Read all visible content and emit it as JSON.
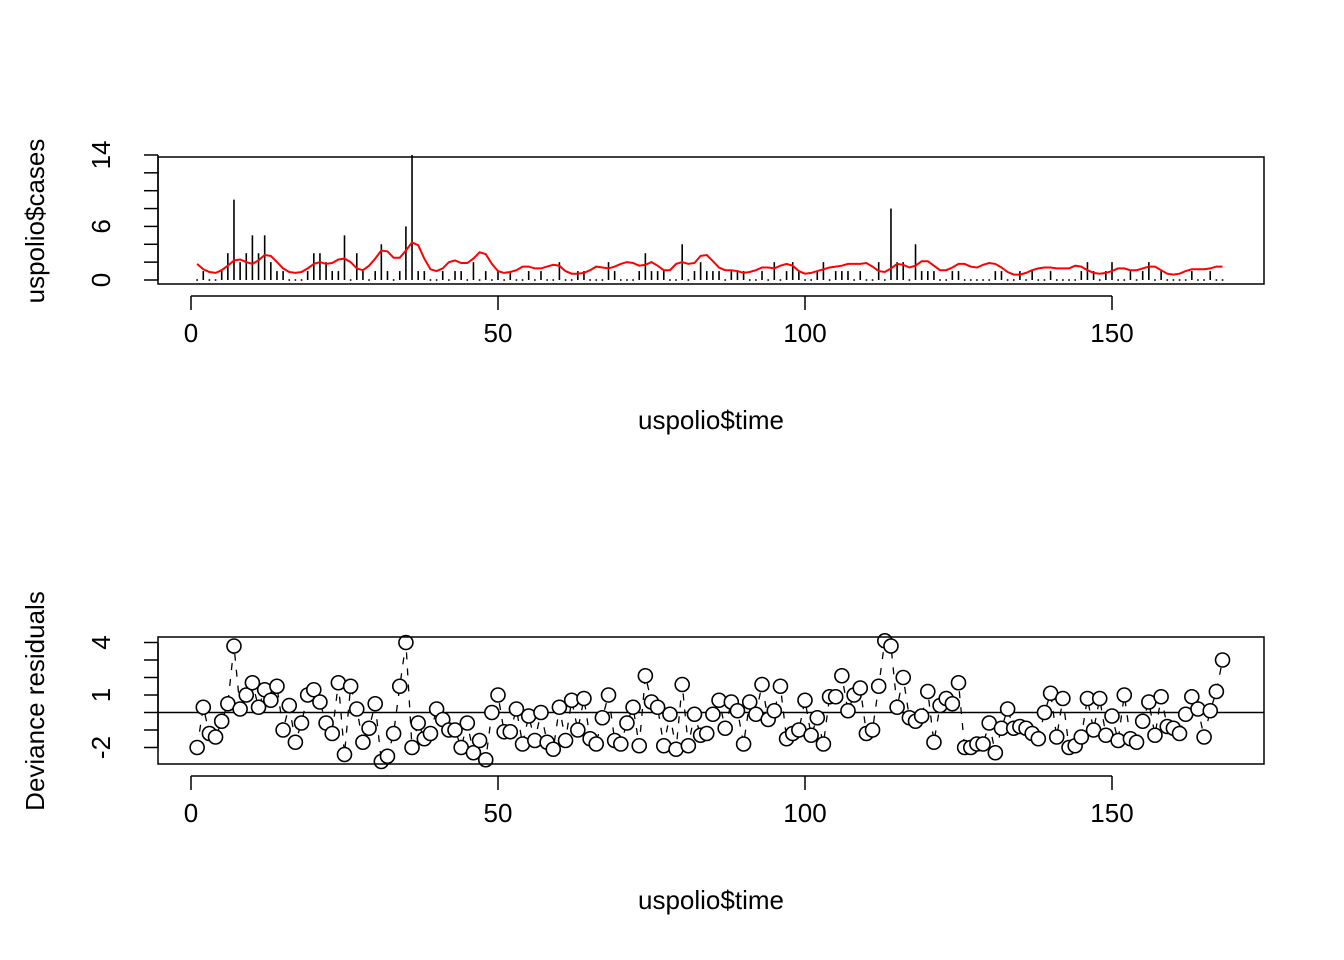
{
  "colors": {
    "axis": "#000000",
    "bars": "#000000",
    "fitted": "#ff0000",
    "points": "#000000",
    "background": "#ffffff"
  },
  "chart_data": [
    {
      "type": "bar",
      "subtype": "histogram-like vertical lines with fitted line overlay",
      "xlabel": "uspolio$time",
      "ylabel": "uspolio$cases",
      "xlim": [
        -5,
        175
      ],
      "ylim": [
        0,
        14
      ],
      "xticks": [
        0,
        50,
        100,
        150
      ],
      "xtick_labels": [
        "0",
        "50",
        "100",
        "150"
      ],
      "yticks": [
        0,
        6,
        14
      ],
      "ytick_labels": [
        "0",
        "6",
        "14"
      ],
      "yminor_ticks": [
        0,
        2,
        4,
        6,
        8,
        10,
        12,
        14
      ],
      "grid": false,
      "series": [
        {
          "kind": "lines-h",
          "x": [
            1,
            2,
            3,
            4,
            5,
            6,
            7,
            8,
            9,
            10,
            11,
            12,
            13,
            14,
            15,
            16,
            17,
            18,
            19,
            20,
            21,
            22,
            23,
            24,
            25,
            26,
            27,
            28,
            29,
            30,
            31,
            32,
            33,
            34,
            35,
            36,
            37,
            38,
            39,
            40,
            41,
            42,
            43,
            44,
            45,
            46,
            47,
            48,
            49,
            50,
            51,
            52,
            53,
            54,
            55,
            56,
            57,
            58,
            59,
            60,
            61,
            62,
            63,
            64,
            65,
            66,
            67,
            68,
            69,
            70,
            71,
            72,
            73,
            74,
            75,
            76,
            77,
            78,
            79,
            80,
            81,
            82,
            83,
            84,
            85,
            86,
            87,
            88,
            89,
            90,
            91,
            92,
            93,
            94,
            95,
            96,
            97,
            98,
            99,
            100,
            101,
            102,
            103,
            104,
            105,
            106,
            107,
            108,
            109,
            110,
            111,
            112,
            113,
            114,
            115,
            116,
            117,
            118,
            119,
            120,
            121,
            122,
            123,
            124,
            125,
            126,
            127,
            128,
            129,
            130,
            131,
            132,
            133,
            134,
            135,
            136,
            137,
            138,
            139,
            140,
            141,
            142,
            143,
            144,
            145,
            146,
            147,
            148,
            149,
            150,
            151,
            152,
            153,
            154,
            155,
            156,
            157,
            158,
            159,
            160,
            161,
            162,
            163,
            164,
            165,
            166,
            167,
            168
          ],
          "values": [
            0,
            1,
            0,
            0,
            1,
            3,
            9,
            2,
            3,
            5,
            3,
            5,
            2,
            1,
            1,
            0,
            0,
            0,
            1,
            3,
            3,
            2,
            1,
            1,
            5,
            0,
            3,
            1,
            0,
            1,
            4,
            1,
            0,
            1,
            6,
            14,
            1,
            1,
            0,
            0,
            1,
            0,
            1,
            1,
            0,
            2,
            0,
            1,
            0,
            1,
            0,
            1,
            0,
            0,
            1,
            0,
            1,
            0,
            0,
            2,
            0,
            0,
            1,
            1,
            0,
            0,
            0,
            2,
            1,
            0,
            0,
            0,
            1,
            3,
            1,
            1,
            1,
            0,
            0,
            4,
            0,
            1,
            2,
            1,
            1,
            1,
            0,
            1,
            1,
            1,
            0,
            0,
            1,
            0,
            2,
            0,
            1,
            2,
            1,
            0,
            0,
            1,
            2,
            0,
            1,
            1,
            1,
            0,
            1,
            0,
            0,
            2,
            0,
            8,
            2,
            2,
            0,
            4,
            1,
            1,
            1,
            0,
            0,
            1,
            1,
            0,
            0,
            0,
            0,
            0,
            1,
            1,
            0,
            0,
            1,
            0,
            1,
            0,
            0,
            1,
            0,
            0,
            0,
            0,
            1,
            2,
            1,
            0,
            1,
            2,
            0,
            0,
            1,
            0,
            1,
            2,
            0,
            1,
            0,
            0,
            0,
            0,
            1,
            0,
            0,
            1,
            0,
            0
          ]
        },
        {
          "kind": "fitted-line",
          "x": [
            1,
            2,
            3,
            4,
            5,
            6,
            7,
            8,
            9,
            10,
            11,
            12,
            13,
            14,
            15,
            16,
            17,
            18,
            19,
            20,
            21,
            22,
            23,
            24,
            25,
            26,
            27,
            28,
            29,
            30,
            31,
            32,
            33,
            34,
            35,
            36,
            37,
            38,
            39,
            40,
            41,
            42,
            43,
            44,
            45,
            46,
            47,
            48,
            49,
            50,
            51,
            52,
            53,
            54,
            55,
            56,
            57,
            58,
            59,
            60,
            61,
            62,
            63,
            64,
            65,
            66,
            67,
            68,
            69,
            70,
            71,
            72,
            73,
            74,
            75,
            76,
            77,
            78,
            79,
            80,
            81,
            82,
            83,
            84,
            85,
            86,
            87,
            88,
            89,
            90,
            91,
            92,
            93,
            94,
            95,
            96,
            97,
            98,
            99,
            100,
            101,
            102,
            103,
            104,
            105,
            106,
            107,
            108,
            109,
            110,
            111,
            112,
            113,
            114,
            115,
            116,
            117,
            118,
            119,
            120,
            121,
            122,
            123,
            124,
            125,
            126,
            127,
            128,
            129,
            130,
            131,
            132,
            133,
            134,
            135,
            136,
            137,
            138,
            139,
            140,
            141,
            142,
            143,
            144,
            145,
            146,
            147,
            148,
            149,
            150,
            151,
            152,
            153,
            154,
            155,
            156,
            157,
            158,
            159,
            160,
            161,
            162,
            163,
            164,
            165,
            166,
            167,
            168
          ],
          "values": [
            1.8,
            1.2,
            0.9,
            0.8,
            1.1,
            1.6,
            2.2,
            2.3,
            2.0,
            1.8,
            2.2,
            2.8,
            2.7,
            2.0,
            1.3,
            0.9,
            0.8,
            0.9,
            1.3,
            1.8,
            2.0,
            1.8,
            1.9,
            2.3,
            2.4,
            2.0,
            1.3,
            1.1,
            1.6,
            2.4,
            3.3,
            3.2,
            2.5,
            2.5,
            3.3,
            4.2,
            3.9,
            2.4,
            1.2,
            1.0,
            1.3,
            2.0,
            2.2,
            1.9,
            1.9,
            2.4,
            3.1,
            2.9,
            1.8,
            1.0,
            0.8,
            0.9,
            1.1,
            1.5,
            1.5,
            1.3,
            1.3,
            1.5,
            1.7,
            1.6,
            1.0,
            0.7,
            0.7,
            0.8,
            1.1,
            1.5,
            1.4,
            1.3,
            1.5,
            1.8,
            2.0,
            1.9,
            1.6,
            1.7,
            2.0,
            1.6,
            1.1,
            1.1,
            1.8,
            2.0,
            1.8,
            1.9,
            2.7,
            2.8,
            2.1,
            1.4,
            1.1,
            1.1,
            1.0,
            0.8,
            0.9,
            1.1,
            1.4,
            1.4,
            1.3,
            1.6,
            1.8,
            1.6,
            1.0,
            0.7,
            0.8,
            1.0,
            1.2,
            1.4,
            1.5,
            1.6,
            1.8,
            1.8,
            1.8,
            1.9,
            1.5,
            1.0,
            0.9,
            1.3,
            1.8,
            1.7,
            1.4,
            1.6,
            2.1,
            2.1,
            1.6,
            1.1,
            1.1,
            1.4,
            1.8,
            1.8,
            1.5,
            1.4,
            1.7,
            1.9,
            1.8,
            1.4,
            0.9,
            0.6,
            0.6,
            0.8,
            1.1,
            1.3,
            1.4,
            1.4,
            1.3,
            1.3,
            1.3,
            1.6,
            1.5,
            1.1,
            0.8,
            0.7,
            0.8,
            1.0,
            1.3,
            1.3,
            1.1,
            1.1,
            1.3,
            1.5,
            1.5,
            1.1,
            0.7,
            0.6,
            0.7,
            1.0,
            1.2,
            1.2,
            1.2,
            1.3,
            1.5,
            1.5
          ]
        }
      ]
    },
    {
      "type": "scatter",
      "subtype": "points with connecting dashed line and zero reference line",
      "xlabel": "uspolio$time",
      "ylabel": "Deviance residuals",
      "xlim": [
        -5,
        175
      ],
      "ylim": [
        -3.2,
        4.8
      ],
      "xticks": [
        0,
        50,
        100,
        150
      ],
      "xtick_labels": [
        "0",
        "50",
        "100",
        "150"
      ],
      "yticks": [
        -2,
        1,
        4
      ],
      "ytick_labels": [
        "-2",
        "1",
        "4"
      ],
      "yminor_ticks": [
        -2,
        -1,
        0,
        1,
        2,
        3,
        4
      ],
      "hline": 0,
      "grid": false,
      "series": [
        {
          "kind": "points",
          "x": [
            1,
            2,
            3,
            4,
            5,
            6,
            7,
            8,
            9,
            10,
            11,
            12,
            13,
            14,
            15,
            16,
            17,
            18,
            19,
            20,
            21,
            22,
            23,
            24,
            25,
            26,
            27,
            28,
            29,
            30,
            31,
            32,
            33,
            34,
            35,
            36,
            37,
            38,
            39,
            40,
            41,
            42,
            43,
            44,
            45,
            46,
            47,
            48,
            49,
            50,
            51,
            52,
            53,
            54,
            55,
            56,
            57,
            58,
            59,
            60,
            61,
            62,
            63,
            64,
            65,
            66,
            67,
            68,
            69,
            70,
            71,
            72,
            73,
            74,
            75,
            76,
            77,
            78,
            79,
            80,
            81,
            82,
            83,
            84,
            85,
            86,
            87,
            88,
            89,
            90,
            91,
            92,
            93,
            94,
            95,
            96,
            97,
            98,
            99,
            100,
            101,
            102,
            103,
            104,
            105,
            106,
            107,
            108,
            109,
            110,
            111,
            112,
            113,
            114,
            115,
            116,
            117,
            118,
            119,
            120,
            121,
            122,
            123,
            124,
            125,
            126,
            127,
            128,
            129,
            130,
            131,
            132,
            133,
            134,
            135,
            136,
            137,
            138,
            139,
            140,
            141,
            142,
            143,
            144,
            145,
            146,
            147,
            148,
            149,
            150,
            151,
            152,
            153,
            154,
            155,
            156,
            157,
            158,
            159,
            160,
            161,
            162,
            163,
            164,
            165,
            166,
            167,
            168
          ],
          "values": [
            -2.0,
            0.3,
            -1.2,
            -1.4,
            -0.5,
            0.5,
            3.8,
            0.2,
            1.0,
            1.7,
            0.3,
            1.3,
            0.7,
            1.5,
            -1.0,
            0.4,
            -1.7,
            -0.6,
            1.0,
            1.3,
            0.6,
            -0.6,
            -1.2,
            1.7,
            -2.4,
            1.5,
            0.2,
            -1.7,
            -0.9,
            0.5,
            -2.8,
            -2.5,
            -1.2,
            1.5,
            4.0,
            -2.0,
            -0.6,
            -1.5,
            -1.2,
            0.2,
            -0.4,
            -1.0,
            -1.0,
            -2.0,
            -0.6,
            -2.3,
            -1.6,
            -2.7,
            0.0,
            1.0,
            -1.1,
            -1.1,
            0.2,
            -1.8,
            -0.2,
            -1.6,
            0.0,
            -1.7,
            -2.1,
            0.3,
            -1.6,
            0.7,
            -1.0,
            0.8,
            -1.5,
            -1.8,
            -0.3,
            1.0,
            -1.6,
            -1.8,
            -0.6,
            0.3,
            -1.9,
            2.1,
            0.6,
            0.3,
            -1.9,
            -0.1,
            -2.1,
            1.6,
            -1.9,
            -0.1,
            -1.3,
            -1.2,
            -0.1,
            0.7,
            -0.9,
            0.6,
            0.1,
            -1.8,
            0.6,
            -0.1,
            1.6,
            -0.4,
            0.1,
            1.5,
            -1.5,
            -1.2,
            -1.0,
            0.7,
            -1.3,
            -0.3,
            -1.8,
            0.9,
            0.9,
            2.1,
            0.1,
            1.0,
            1.4,
            -1.2,
            -1.0,
            1.5,
            4.1,
            3.8,
            0.3,
            2.0,
            -0.3,
            -0.5,
            -0.2,
            1.2,
            -1.7,
            0.4,
            0.8,
            0.5,
            1.7,
            -2.0,
            -2.0,
            -1.8,
            -1.8,
            -0.6,
            -2.3,
            -0.9,
            0.2,
            -0.9,
            -0.8,
            -0.9,
            -1.2,
            -1.5,
            0.0,
            1.1,
            -1.4,
            0.8,
            -2.0,
            -1.9,
            -1.4,
            0.8,
            -1.0,
            0.8,
            -1.3,
            -0.2,
            -1.6,
            1.0,
            -1.5,
            -1.7,
            -0.5,
            0.6,
            -1.3,
            0.9,
            -0.8,
            -0.9,
            -1.2,
            -0.1,
            0.9,
            0.2,
            -1.4,
            0.1,
            1.2,
            3.0
          ]
        },
        {
          "kind": "connecting-line",
          "style": "dashed"
        }
      ]
    }
  ]
}
